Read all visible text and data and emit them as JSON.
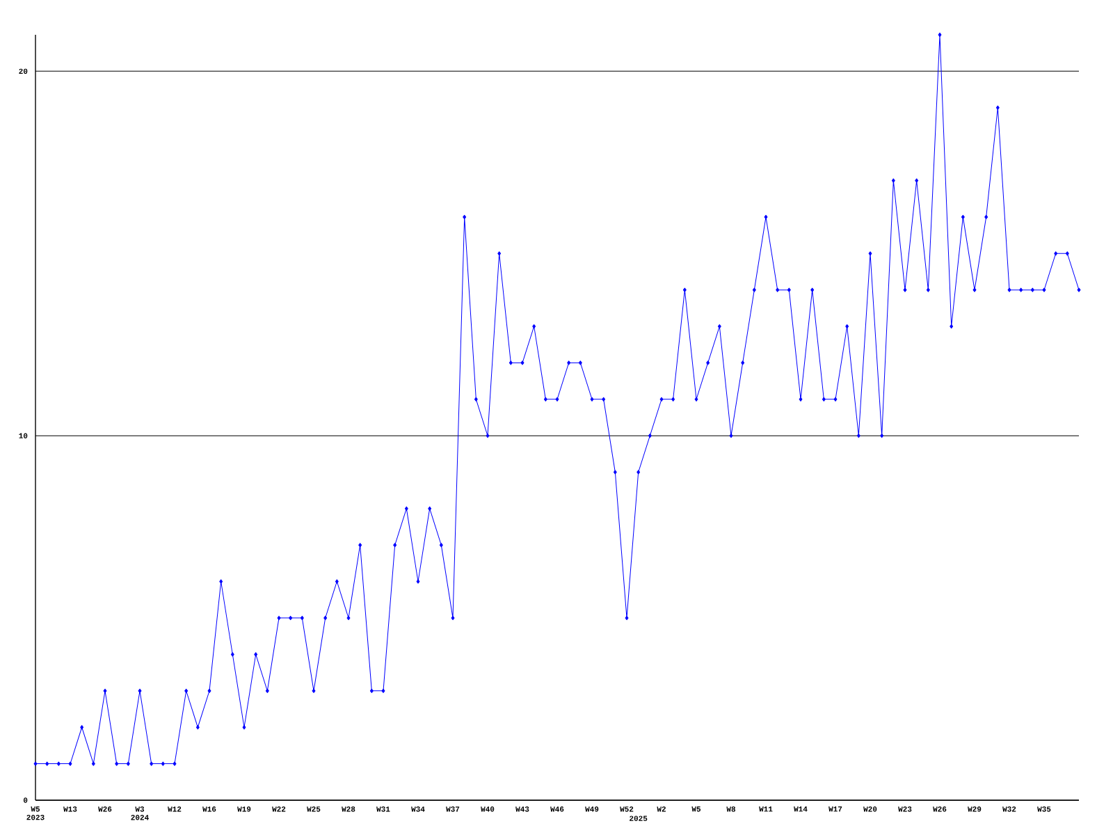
{
  "chart_data": {
    "type": "line",
    "categories": [
      "W5 2023",
      null,
      null,
      "W13",
      null,
      null,
      "W26",
      null,
      null,
      "W3 2024",
      null,
      null,
      "W12",
      null,
      null,
      "W16",
      null,
      null,
      "W19",
      null,
      null,
      "W22",
      null,
      null,
      "W25",
      null,
      null,
      "W28",
      null,
      null,
      "W31",
      null,
      null,
      "W34",
      null,
      null,
      "W37",
      null,
      null,
      "W40",
      null,
      null,
      "W43",
      null,
      null,
      "W46",
      null,
      null,
      "W49",
      null,
      null,
      "W52",
      "2025",
      null,
      "W2",
      null,
      null,
      "W5",
      null,
      null,
      "W8",
      null,
      null,
      "W11",
      null,
      null,
      "W14",
      null,
      null,
      "W17",
      null,
      null,
      "W20",
      null,
      null,
      "W23",
      null,
      null,
      "W26",
      null,
      null,
      "W29",
      null,
      null,
      "W32",
      null,
      null,
      "W35",
      null,
      null,
      null
    ],
    "series": [
      {
        "color": "#0000ff",
        "values": [
          1,
          1,
          1,
          1,
          2,
          1,
          3,
          1,
          1,
          3,
          1,
          1,
          1,
          3,
          2,
          3,
          6,
          4,
          2,
          4,
          3,
          5,
          5,
          5,
          3,
          5,
          6,
          5,
          7,
          3,
          3,
          7,
          8,
          6,
          8,
          7,
          5,
          16,
          11,
          10,
          15,
          12,
          12,
          13,
          11,
          11,
          12,
          12,
          11,
          11,
          9,
          5,
          9,
          10,
          11,
          11,
          14,
          11,
          12,
          13,
          10,
          12,
          14,
          16,
          14,
          14,
          11,
          14,
          11,
          11,
          13,
          10,
          15,
          10,
          17,
          14,
          17,
          14,
          21,
          13,
          16,
          14,
          16,
          19,
          14,
          14,
          14,
          14,
          15,
          15,
          14
        ]
      }
    ],
    "ylim": [
      0,
      21
    ],
    "yticks": [
      0,
      10,
      20
    ],
    "grid": "y",
    "marker": "diamond",
    "line_style": "solid"
  }
}
